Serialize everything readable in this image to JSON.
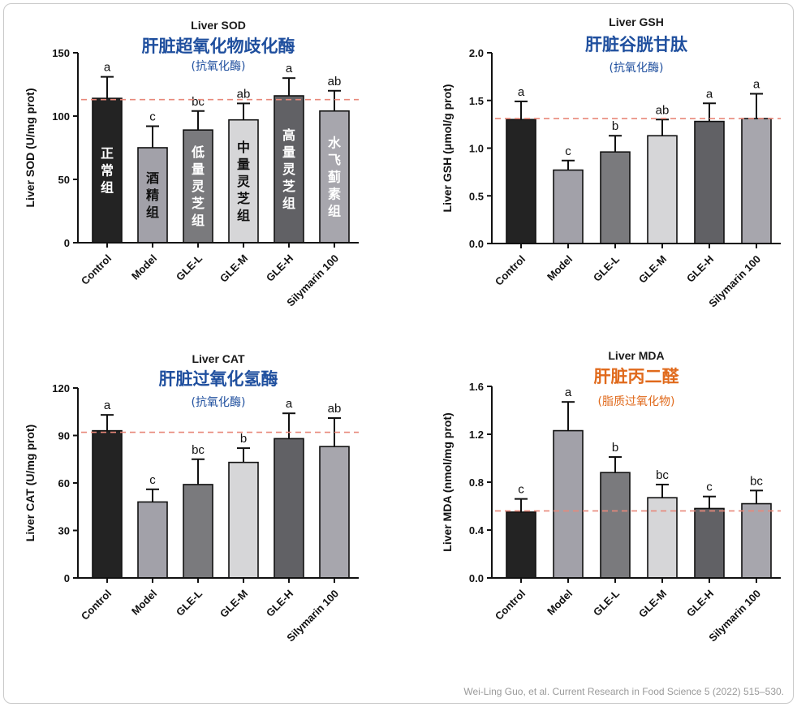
{
  "citation": "Wei-Ling Guo, et al. Current Research in Food Science 5 (2022) 515–530.",
  "colors": {
    "bars": [
      "#232323",
      "#a2a1a9",
      "#7a7a7d",
      "#d6d6d8",
      "#616165",
      "#a7a6ad"
    ],
    "ref_line": "#e8887a",
    "title_cn_blue": "#1f4f9e",
    "title_cn_orange": "#e06a1c"
  },
  "chart_data": [
    {
      "type": "bar",
      "title": "Liver SOD",
      "title_cn": "肝脏超氧化物歧化酶",
      "subtitle_cn": "(抗氧化酶)",
      "title_cn_color": "#1f4f9e",
      "ylabel": "Liver SOD (U/mg prot)",
      "ylim": [
        0,
        150
      ],
      "yticks": [
        "0",
        "50",
        "100",
        "150"
      ],
      "ytick_values": [
        0,
        50,
        100,
        150
      ],
      "categories": [
        "Control",
        "Model",
        "GLE-L",
        "GLE-M",
        "GLE-H",
        "Silymarin 100"
      ],
      "values": [
        114,
        75,
        89,
        97,
        116,
        104
      ],
      "errors": [
        17,
        17,
        15,
        13,
        14,
        16
      ],
      "significance": [
        "a",
        "c",
        "bc",
        "ab",
        "a",
        "ab"
      ],
      "reference_line": 113,
      "bar_labels": [
        "正常组",
        "酒精组",
        "低量灵芝组",
        "中量灵芝组",
        "高量灵芝组",
        "水飞蓟素组"
      ]
    },
    {
      "type": "bar",
      "title": "Liver GSH",
      "title_cn": "肝脏谷胱甘肽",
      "subtitle_cn": "(抗氧化酶)",
      "title_cn_color": "#1f4f9e",
      "ylabel": "Liver GSH (μmol/g prot)",
      "ylim": [
        0,
        2.0
      ],
      "yticks": [
        "0.0",
        "0.5",
        "1.0",
        "1.5",
        "2.0"
      ],
      "ytick_values": [
        0,
        0.5,
        1.0,
        1.5,
        2.0
      ],
      "categories": [
        "Control",
        "Model",
        "GLE-L",
        "GLE-M",
        "GLE-H",
        "Silymarin 100"
      ],
      "values": [
        1.3,
        0.77,
        0.96,
        1.13,
        1.28,
        1.31
      ],
      "errors": [
        0.19,
        0.1,
        0.17,
        0.17,
        0.19,
        0.26
      ],
      "significance": [
        "a",
        "c",
        "b",
        "ab",
        "a",
        "a"
      ],
      "reference_line": 1.31
    },
    {
      "type": "bar",
      "title": "Liver CAT",
      "title_cn": "肝脏过氧化氢酶",
      "subtitle_cn": "(抗氧化酶)",
      "title_cn_color": "#1f4f9e",
      "ylabel": "Liver CAT (U/mg prot)",
      "ylim": [
        0,
        120
      ],
      "yticks": [
        "0",
        "30",
        "60",
        "90",
        "120"
      ],
      "ytick_values": [
        0,
        30,
        60,
        90,
        120
      ],
      "categories": [
        "Control",
        "Model",
        "GLE-L",
        "GLE-M",
        "GLE-H",
        "Silymarin 100"
      ],
      "values": [
        93,
        48,
        59,
        73,
        88,
        83
      ],
      "errors": [
        10,
        8,
        16,
        9,
        16,
        18
      ],
      "significance": [
        "a",
        "c",
        "bc",
        "b",
        "a",
        "ab"
      ],
      "reference_line": 92
    },
    {
      "type": "bar",
      "title": "Liver MDA",
      "title_cn": "肝脏丙二醛",
      "subtitle_cn": "(脂质过氧化物)",
      "title_cn_color": "#e06a1c",
      "ylabel": "Liver MDA (nmol/mg prot)",
      "ylim": [
        0,
        1.6
      ],
      "yticks": [
        "0.0",
        "0.4",
        "0.8",
        "1.2",
        "1.6"
      ],
      "ytick_values": [
        0,
        0.4,
        0.8,
        1.2,
        1.6
      ],
      "categories": [
        "Control",
        "Model",
        "GLE-L",
        "GLE-M",
        "GLE-H",
        "Silymarin 100"
      ],
      "values": [
        0.55,
        1.23,
        0.88,
        0.67,
        0.58,
        0.62
      ],
      "errors": [
        0.11,
        0.24,
        0.13,
        0.11,
        0.1,
        0.11
      ],
      "significance": [
        "c",
        "a",
        "b",
        "bc",
        "c",
        "bc"
      ],
      "reference_line": 0.56
    }
  ]
}
